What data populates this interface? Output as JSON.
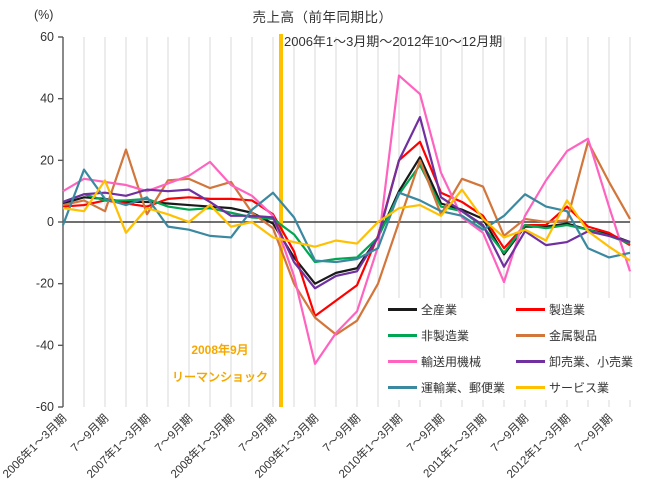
{
  "title": "売上高（前年同期比）",
  "subtitle": "2006年1～3月期～2012年10～12月期",
  "y_unit_label": "(%)",
  "annotation": {
    "line1": "2008年9月",
    "line2": "リーマンショック",
    "text_color": "#f5a800",
    "line_color": "#ffc000"
  },
  "chart_data": {
    "type": "line",
    "title": "売上高（前年同期比）",
    "subtitle": "2006年1～3月期～2012年10～12月期",
    "ylabel": "(%)",
    "ylim": [
      -60,
      60
    ],
    "y_ticks": [
      60,
      40,
      20,
      0,
      -20,
      -40,
      -60
    ],
    "n_points": 28,
    "grid": "vertical-per-quarter",
    "legend_position": "inside-lower-right",
    "x_tick_labels": [
      {
        "index": 0,
        "label": "2006年1～3月期"
      },
      {
        "index": 2,
        "label": "7～9月期"
      },
      {
        "index": 4,
        "label": "2007年1～3月期"
      },
      {
        "index": 6,
        "label": "7～9月期"
      },
      {
        "index": 8,
        "label": "2008年1～3月期"
      },
      {
        "index": 10,
        "label": "7～9月期"
      },
      {
        "index": 12,
        "label": "2009年1～3月期"
      },
      {
        "index": 14,
        "label": "7～9月期"
      },
      {
        "index": 16,
        "label": "2010年1～3月期"
      },
      {
        "index": 18,
        "label": "7～9月期"
      },
      {
        "index": 20,
        "label": "2011年1～3月期"
      },
      {
        "index": 22,
        "label": "7～9月期"
      },
      {
        "index": 24,
        "label": "2012年1～3月期"
      },
      {
        "index": 26,
        "label": "7～9月期"
      }
    ],
    "event_line": {
      "label": "リーマンショック 2008年9月",
      "between_indices": [
        10,
        11
      ]
    },
    "series": [
      {
        "name": "全産業",
        "slug": "all-industries",
        "color": "#1a1a1a",
        "values": [
          6,
          8,
          7.5,
          6.5,
          6.5,
          6,
          5.5,
          5,
          4.5,
          3,
          -0.5,
          -11.5,
          -20,
          -16.5,
          -15,
          -5,
          10,
          21,
          6,
          4,
          1,
          -10.5,
          -1.5,
          -1.5,
          -0.5,
          -2.5,
          -4,
          -6.5
        ]
      },
      {
        "name": "製造業",
        "slug": "manufacturing",
        "color": "#ff0000",
        "values": [
          5,
          5.5,
          7,
          6,
          5,
          7.5,
          8,
          7.5,
          7.5,
          7,
          2.5,
          -9.5,
          -30.5,
          -25.5,
          -20.5,
          -4.5,
          20,
          26,
          9.5,
          6.5,
          2,
          -8.5,
          -1,
          -1,
          5,
          -1.5,
          -3.5,
          -7.5
        ]
      },
      {
        "name": "非製造業",
        "slug": "non-manufacturing",
        "color": "#00a651",
        "values": [
          6.5,
          9,
          7,
          7,
          7.5,
          5,
          4,
          4.5,
          3,
          1.5,
          1,
          -4,
          -13,
          -12,
          -11.5,
          -5,
          9,
          18.5,
          5,
          3.5,
          -1.5,
          -10,
          -1,
          -2,
          -1,
          -2.5,
          -4.5,
          -7
        ]
      },
      {
        "name": "金属製品",
        "slug": "metal-products",
        "color": "#d2763b",
        "values": [
          5.5,
          7,
          3.5,
          23.5,
          2.5,
          13.5,
          14,
          11,
          13,
          3,
          -2,
          -20,
          -31,
          -36.5,
          -32,
          -20,
          0,
          20,
          2.5,
          14,
          11.5,
          -4.5,
          1,
          0,
          0.5,
          26,
          13,
          1
        ]
      },
      {
        "name": "輸送用機械",
        "slug": "transport-machinery",
        "color": "#ff63c0",
        "values": [
          10,
          14,
          13,
          12,
          10,
          12.5,
          15,
          19.5,
          12,
          8.5,
          2,
          -17.5,
          -46,
          -36,
          -29,
          -8,
          47.5,
          41.5,
          16,
          1.5,
          -3.5,
          -19.5,
          2,
          13.5,
          23,
          27,
          5,
          -16
        ]
      },
      {
        "name": "卸売業、小売業",
        "slug": "wholesale-retail",
        "color": "#7030a0",
        "values": [
          6.5,
          9,
          9.5,
          8.5,
          10.5,
          10,
          10.5,
          6.5,
          2,
          2,
          1.5,
          -13,
          -21.5,
          -17.5,
          -16,
          -5,
          20,
          34,
          8,
          3.5,
          -1,
          -14.5,
          -3,
          -7.5,
          -6.5,
          -3,
          -4.5,
          -6.5
        ]
      },
      {
        "name": "運輸業、郵便業",
        "slug": "transport-postal",
        "color": "#3a89a0",
        "values": [
          -1,
          17,
          7.5,
          5.5,
          8,
          -1.5,
          -2.5,
          -4.5,
          -5,
          4,
          9.5,
          1.5,
          -12.5,
          -13,
          -12,
          -8.5,
          9.5,
          7,
          3.5,
          2,
          -2.5,
          2,
          9,
          5,
          3.5,
          -8.5,
          -11.5,
          -10
        ]
      },
      {
        "name": "サービス業",
        "slug": "services",
        "color": "#ffc000",
        "values": [
          4.5,
          3.5,
          13.5,
          -3.5,
          4.5,
          2.5,
          0,
          5.5,
          -1.5,
          0,
          -5,
          -6.5,
          -8,
          -6,
          -7,
          0,
          4.5,
          5.5,
          2,
          10.5,
          1,
          -5,
          -2.5,
          -6,
          7,
          -3,
          -8,
          -12.5
        ]
      }
    ],
    "colors": {
      "gridline": "#d9d9d9",
      "axis": "#595959",
      "zero_line": "#404040",
      "event_line": "#ffc000"
    }
  }
}
